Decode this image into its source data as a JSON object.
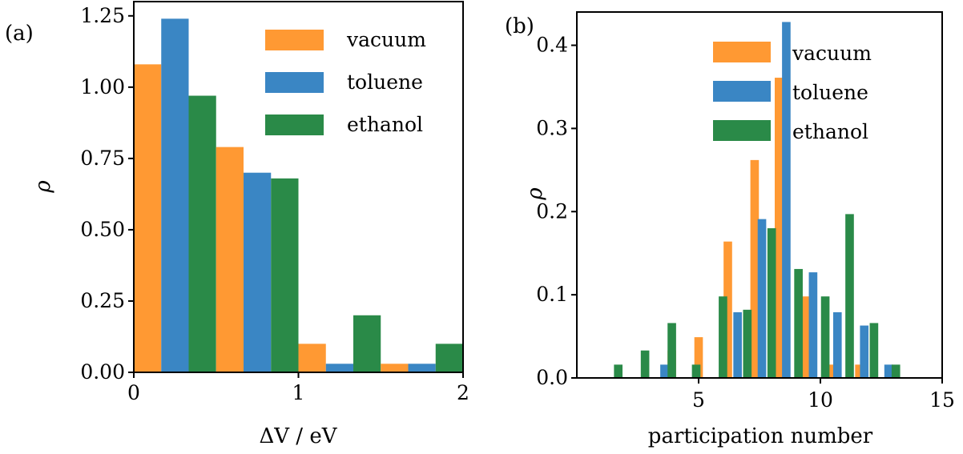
{
  "colors": {
    "vacuum": "#ff9933",
    "toluene": "#3a86c4",
    "ethanol": "#2a8a48"
  },
  "chart_data": [
    {
      "type": "bar",
      "panel_label": "(a)",
      "xlabel": "ΔV / eV",
      "ylabel": "ρ",
      "xlim": [
        0,
        2
      ],
      "ylim": [
        0,
        1.3
      ],
      "xticks": [
        "0",
        "1",
        "2"
      ],
      "yticks": [
        "0.00",
        "0.25",
        "0.50",
        "0.75",
        "1.00",
        "1.25"
      ],
      "legend_position": "top-right",
      "bin_edges": [
        0,
        0.5,
        1.0,
        1.5,
        2.0
      ],
      "series": [
        {
          "name": "vacuum",
          "values": [
            1.08,
            0.79,
            0.1,
            0.03
          ]
        },
        {
          "name": "toluene",
          "values": [
            1.24,
            0.7,
            0.03,
            0.03
          ]
        },
        {
          "name": "ethanol",
          "values": [
            0.97,
            0.68,
            0.2,
            0.1
          ]
        }
      ]
    },
    {
      "type": "bar",
      "panel_label": "(b)",
      "xlabel": "participation number",
      "ylabel": "ρ",
      "xlim": [
        0,
        15
      ],
      "ylim": [
        0,
        0.44
      ],
      "xticks": [
        "5",
        "10",
        "15"
      ],
      "yticks": [
        "0.0",
        "0.1",
        "0.2",
        "0.3",
        "0.4"
      ],
      "legend_position": "top-center",
      "series": [
        {
          "name": "vacuum",
          "x": [
            3.9,
            5.0,
            6.2,
            7.3,
            8.3,
            9.4,
            10.5,
            11.6
          ],
          "values": [
            0.033,
            0.049,
            0.164,
            0.262,
            0.361,
            0.098,
            0.016,
            0.016
          ]
        },
        {
          "name": "toluene",
          "x": [
            3.6,
            6.6,
            7.6,
            8.6,
            9.7,
            10.7,
            11.8,
            12.8
          ],
          "values": [
            0.016,
            0.079,
            0.191,
            0.428,
            0.127,
            0.079,
            0.063,
            0.016
          ]
        },
        {
          "name": "ethanol",
          "x": [
            1.7,
            2.8,
            3.9,
            4.9,
            6.0,
            7.0,
            8.0,
            9.1,
            10.2,
            11.2,
            12.2,
            13.1
          ],
          "values": [
            0.016,
            0.033,
            0.066,
            0.016,
            0.098,
            0.082,
            0.18,
            0.131,
            0.098,
            0.197,
            0.066,
            0.016
          ]
        }
      ]
    }
  ]
}
